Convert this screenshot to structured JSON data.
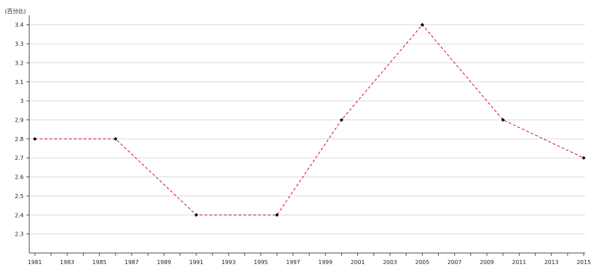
{
  "chart_data": {
    "type": "line",
    "title": "",
    "xlabel": "",
    "ylabel": "(百分比)",
    "x": [
      1981,
      1986,
      1991,
      1996,
      2000,
      2005,
      2010,
      2015
    ],
    "series": [
      {
        "values": [
          2.8,
          2.8,
          2.4,
          2.4,
          2.9,
          3.4,
          2.9,
          2.7
        ]
      }
    ],
    "xlim": [
      1981,
      2015
    ],
    "x_ticks": [
      "1981",
      "1983",
      "1985",
      "1987",
      "1989",
      "1991",
      "1993",
      "1995",
      "1997",
      "1999",
      "2001",
      "2003",
      "2005",
      "2007",
      "2009",
      "2011",
      "2013",
      "2015"
    ],
    "ylim": [
      2.2,
      3.45
    ],
    "y_ticks": [
      "2.3",
      "2.4",
      "2.5",
      "2.6",
      "2.7",
      "2.8",
      "2.9",
      "3",
      "3.1",
      "3.2",
      "3.3",
      "3.4"
    ],
    "grid": true,
    "line_color": "#d0021b",
    "line_style": "dashed",
    "marker_color": "#000000"
  }
}
